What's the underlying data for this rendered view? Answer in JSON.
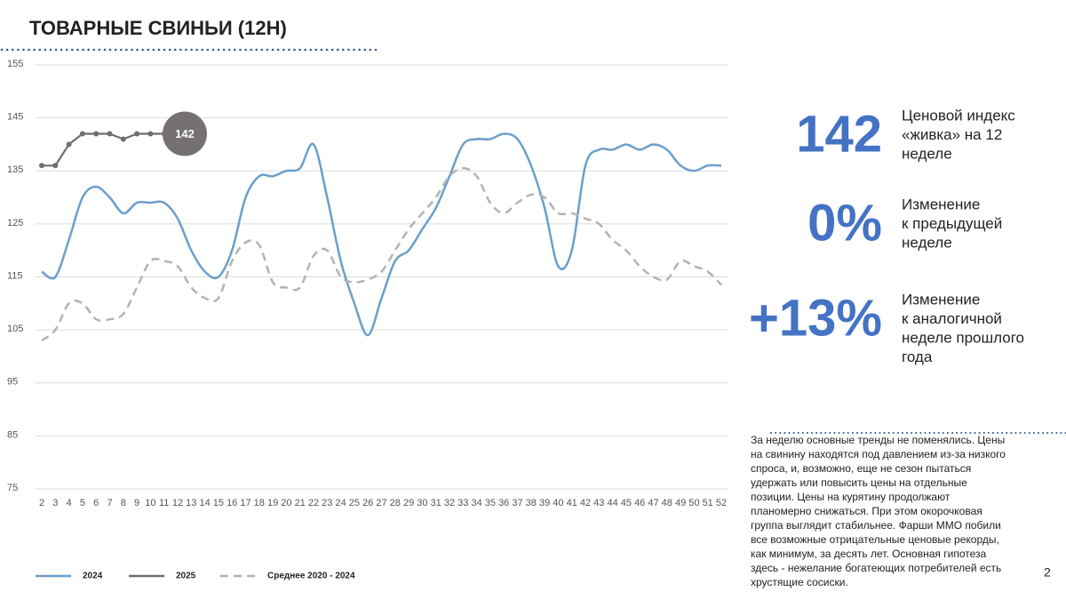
{
  "title": "ТОВАРНЫЕ СВИНЬИ (12Н)",
  "chart_data": {
    "type": "line",
    "categories": [
      "2",
      "3",
      "4",
      "5",
      "6",
      "7",
      "8",
      "9",
      "10",
      "11",
      "12",
      "13",
      "14",
      "15",
      "16",
      "17",
      "18",
      "19",
      "20",
      "21",
      "22",
      "23",
      "24",
      "25",
      "26",
      "27",
      "28",
      "29",
      "30",
      "31",
      "32",
      "33",
      "34",
      "35",
      "36",
      "37",
      "38",
      "39",
      "40",
      "41",
      "42",
      "43",
      "44",
      "45",
      "46",
      "47",
      "48",
      "49",
      "50",
      "51",
      "52"
    ],
    "series": [
      {
        "name": "2024",
        "color": "#6b9fcc",
        "style": "solid",
        "values": [
          116,
          115,
          122,
          130,
          132,
          130,
          127,
          129,
          129,
          129,
          126,
          120,
          116,
          115,
          120,
          130,
          134,
          134,
          135,
          135.5,
          140,
          130,
          118,
          110,
          104,
          111,
          118,
          120,
          124,
          128,
          134,
          140,
          141,
          141,
          142,
          141,
          136,
          128,
          117,
          120,
          136,
          139,
          139,
          140,
          139,
          140,
          139,
          136,
          135,
          136,
          136
        ]
      },
      {
        "name": "2025",
        "color": "#6e6e6e",
        "style": "markers",
        "values": [
          136,
          136,
          140,
          142,
          142,
          142,
          141,
          142,
          142,
          142,
          142,
          null,
          null,
          null,
          null,
          null,
          null,
          null,
          null,
          null,
          null,
          null,
          null,
          null,
          null,
          null,
          null,
          null,
          null,
          null,
          null,
          null,
          null,
          null,
          null,
          null,
          null,
          null,
          null,
          null,
          null,
          null,
          null,
          null,
          null,
          null,
          null,
          null,
          null,
          null,
          null
        ]
      },
      {
        "name": "Среднее 2020 - 2024",
        "color": "#b3b3b3",
        "style": "dashed",
        "values": [
          103,
          105,
          110,
          110,
          107,
          107,
          108,
          113,
          118,
          118,
          117,
          113,
          111,
          111,
          118,
          121.5,
          121,
          114,
          113,
          113,
          119,
          120,
          115,
          114,
          114.5,
          116,
          120,
          124,
          127,
          130,
          134,
          135.5,
          134,
          129,
          127,
          129,
          130.5,
          130,
          127,
          127,
          126,
          125,
          122,
          120,
          117,
          115,
          114.5,
          118,
          117,
          116,
          113.5
        ]
      }
    ],
    "ylim": [
      75,
      155
    ],
    "yticks": [
      75,
      85,
      95,
      105,
      115,
      125,
      135,
      145,
      155
    ],
    "grid": true
  },
  "kpis": [
    {
      "value": "142",
      "label": [
        "Ценовой индекс",
        "«живка» на 12",
        "неделе"
      ]
    },
    {
      "value": "0%",
      "label": [
        "Изменение",
        "к предыдущей",
        "неделе"
      ]
    },
    {
      "value": "+13%",
      "label": [
        "Изменение",
        "к аналогичной",
        "неделе прошлого",
        "года"
      ]
    }
  ],
  "commentary": [
    "За неделю основные тренды не поменялись. Цены",
    "на свинину находятся под давлением из-за низкого",
    "спроса, и, возможно, еще не сезон пытаться",
    "удержать или повысить цены на отдельные",
    "позиции. Цены на курятину продолжают",
    "планомерно снижаться. При этом окорочковая",
    "группа выглядит стабильнее. Фарши ММО побили",
    "все возможные отрицательные ценовые рекорды,",
    "как минимум, за десять лет. Основная гипотеза",
    "здесь - нежелание богатеющих потребителей есть",
    "хрустящие сосиски."
  ],
  "page_number": "2"
}
